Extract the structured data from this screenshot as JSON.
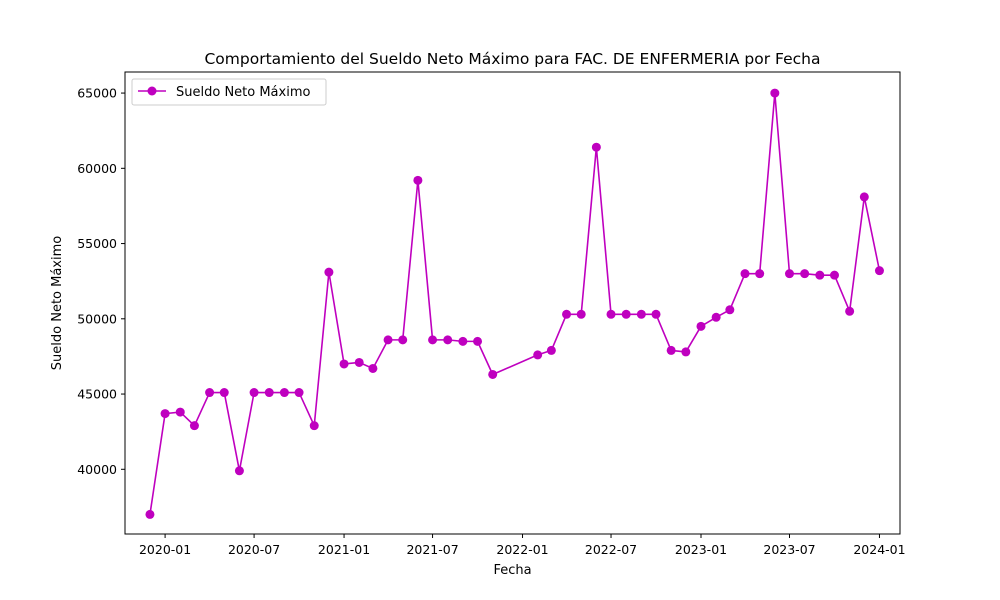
{
  "chart_data": {
    "type": "line",
    "title": "Comportamiento del Sueldo Neto Máximo para FAC. DE ENFERMERIA por Fecha",
    "xlabel": "Fecha",
    "ylabel": "Sueldo Neto Máximo",
    "x_ticks": [
      "2020-01",
      "2020-07",
      "2021-01",
      "2021-07",
      "2022-01",
      "2022-07",
      "2023-01",
      "2023-07",
      "2024-01"
    ],
    "y_ticks": [
      40000,
      45000,
      50000,
      55000,
      60000,
      65000
    ],
    "ylim": [
      35700,
      66400
    ],
    "xlim": [
      "2019-10-11",
      "2024-02-12"
    ],
    "grid": false,
    "legend_position": "top-left",
    "color": "#bf00bf",
    "series": [
      {
        "name": "Sueldo Neto Máximo",
        "x": [
          "2019-12-01",
          "2020-01-01",
          "2020-02-01",
          "2020-03-01",
          "2020-04-01",
          "2020-05-01",
          "2020-06-01",
          "2020-07-01",
          "2020-08-01",
          "2020-09-01",
          "2020-10-01",
          "2020-11-01",
          "2020-12-01",
          "2021-01-01",
          "2021-02-01",
          "2021-03-01",
          "2021-04-01",
          "2021-05-01",
          "2021-06-01",
          "2021-07-01",
          "2021-08-01",
          "2021-09-01",
          "2021-10-01",
          "2021-11-01",
          "2022-02-01",
          "2022-03-01",
          "2022-04-01",
          "2022-05-01",
          "2022-06-01",
          "2022-07-01",
          "2022-08-01",
          "2022-09-01",
          "2022-10-01",
          "2022-11-01",
          "2022-12-01",
          "2023-01-01",
          "2023-02-01",
          "2023-03-01",
          "2023-04-01",
          "2023-05-01",
          "2023-06-01",
          "2023-07-01",
          "2023-08-01",
          "2023-09-01",
          "2023-10-01",
          "2023-11-01",
          "2023-12-01",
          "2024-01-01"
        ],
        "values": [
          37000,
          43700,
          43800,
          42900,
          45100,
          45100,
          39900,
          45100,
          45100,
          45100,
          45100,
          42900,
          53100,
          47000,
          47100,
          46700,
          48600,
          48600,
          59200,
          48600,
          48600,
          48500,
          48500,
          46300,
          47600,
          47900,
          50300,
          50300,
          61400,
          50300,
          50300,
          50300,
          50300,
          47900,
          47800,
          49500,
          50100,
          50600,
          53000,
          53000,
          65000,
          53000,
          53000,
          52900,
          52900,
          50500,
          58100,
          53200
        ]
      }
    ]
  }
}
